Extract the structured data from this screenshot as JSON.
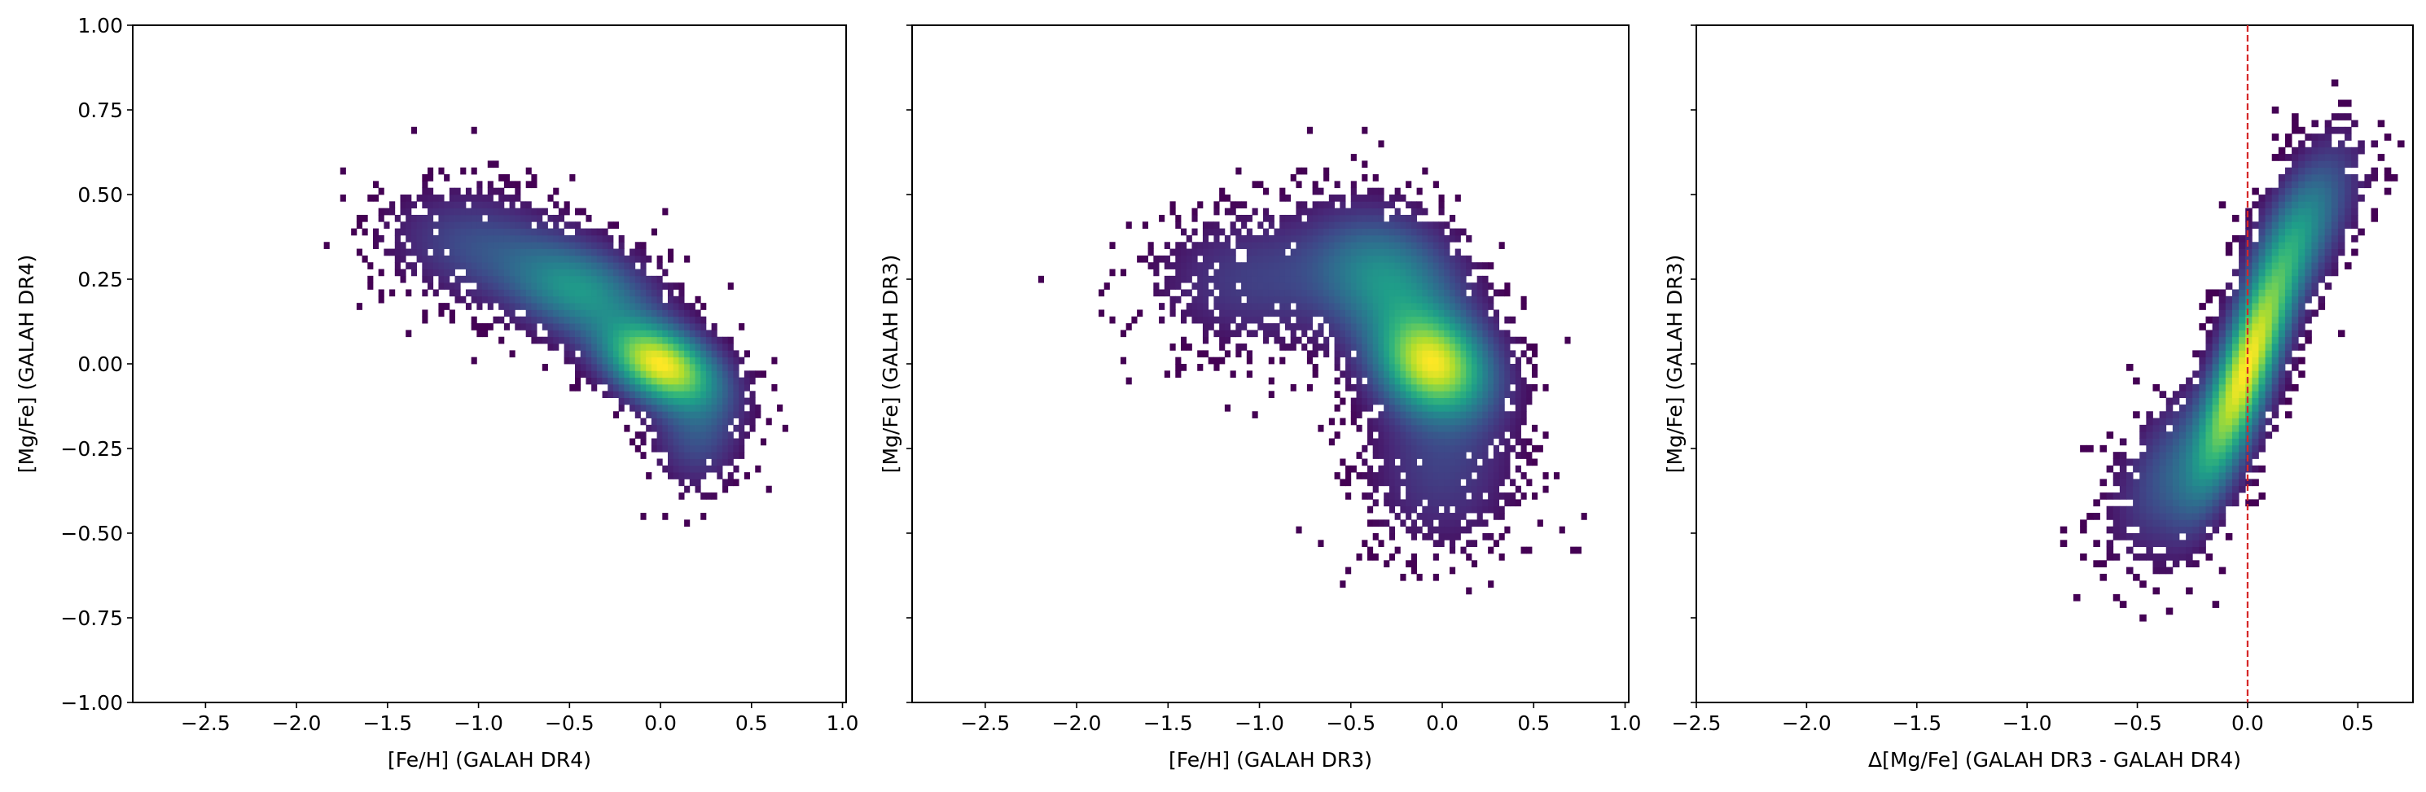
{
  "chart_data": [
    {
      "type": "heatmap",
      "title": "",
      "xlabel": "[Fe/H] (GALAH DR4)",
      "ylabel": "[Mg/Fe] (GALAH DR4)",
      "xlim": [
        -2.9,
        1.02
      ],
      "ylim": [
        -1.0,
        1.0
      ],
      "xticks": [
        -2.5,
        -2.0,
        -1.5,
        -1.0,
        -0.5,
        0.0,
        0.5,
        1.0
      ],
      "xtick_labels": [
        "−2.5",
        "−2.0",
        "−1.5",
        "−1.0",
        "−0.5",
        "0.0",
        "0.5",
        "1.0"
      ],
      "yticks": [
        -1.0,
        -0.75,
        -0.5,
        -0.25,
        0.0,
        0.25,
        0.5,
        0.75,
        1.0
      ],
      "ytick_labels": [
        "−1.00",
        "−0.75",
        "−0.50",
        "−0.25",
        "0.00",
        "0.25",
        "0.50",
        "0.75",
        "1.00"
      ],
      "colormap": "viridis",
      "density_components": [
        {
          "x": 0.0,
          "y": 0.0,
          "sx": 0.2,
          "sy": 0.08,
          "rho": -0.4,
          "w": 1.0
        },
        {
          "x": -0.45,
          "y": 0.22,
          "sx": 0.25,
          "sy": 0.09,
          "rho": -0.3,
          "w": 0.45
        },
        {
          "x": -1.0,
          "y": 0.35,
          "sx": 0.3,
          "sy": 0.1,
          "rho": -0.2,
          "w": 0.18
        },
        {
          "x": 0.2,
          "y": -0.2,
          "sx": 0.15,
          "sy": 0.1,
          "rho": 0.0,
          "w": 0.2
        }
      ]
    },
    {
      "type": "heatmap",
      "title": "",
      "xlabel": "[Fe/H] (GALAH DR3)",
      "ylabel": "[Mg/Fe] (GALAH DR3)",
      "xlim": [
        -2.9,
        1.02
      ],
      "ylim": [
        -1.0,
        1.0
      ],
      "xticks": [
        -2.5,
        -2.0,
        -1.5,
        -1.0,
        -0.5,
        0.0,
        0.5,
        1.0
      ],
      "xtick_labels": [
        "−2.5",
        "−2.0",
        "−1.5",
        "−1.0",
        "−0.5",
        "0.0",
        "0.5",
        "1.0"
      ],
      "yticks": [
        -1.0,
        -0.75,
        -0.5,
        -0.25,
        0.0,
        0.25,
        0.5,
        0.75,
        1.0
      ],
      "ytick_labels": [],
      "colormap": "viridis",
      "density_components": [
        {
          "x": -0.05,
          "y": 0.0,
          "sx": 0.2,
          "sy": 0.1,
          "rho": -0.2,
          "w": 1.0
        },
        {
          "x": -0.3,
          "y": 0.25,
          "sx": 0.25,
          "sy": 0.12,
          "rho": -0.2,
          "w": 0.45
        },
        {
          "x": -1.0,
          "y": 0.25,
          "sx": 0.35,
          "sy": 0.12,
          "rho": 0.0,
          "w": 0.15
        },
        {
          "x": 0.0,
          "y": -0.3,
          "sx": 0.25,
          "sy": 0.15,
          "rho": 0.0,
          "w": 0.15
        }
      ]
    },
    {
      "type": "heatmap",
      "title": "",
      "xlabel": "Δ[Mg/Fe] (GALAH DR3 - GALAH DR4)",
      "ylabel": "[Mg/Fe] (GALAH DR3)",
      "xlim": [
        -2.5,
        0.75
      ],
      "ylim": [
        -1.0,
        1.0
      ],
      "xticks": [
        -2.5,
        -2.0,
        -1.5,
        -1.0,
        -0.5,
        0.0,
        0.5
      ],
      "xtick_labels": [
        "−2.5",
        "−2.0",
        "−1.5",
        "−1.0",
        "−0.5",
        "0.0",
        "0.5"
      ],
      "yticks": [
        -1.0,
        -0.75,
        -0.5,
        -0.25,
        0.0,
        0.25,
        0.5,
        0.75,
        1.0
      ],
      "ytick_labels": [],
      "colormap": "viridis",
      "reference_line": {
        "x": 0.0,
        "color": "#d62728",
        "style": "dashed"
      },
      "density_components": [
        {
          "x": 0.0,
          "y": 0.0,
          "sx": 0.14,
          "sy": 0.22,
          "rho": 0.8,
          "w": 1.0
        },
        {
          "x": 0.25,
          "y": 0.4,
          "sx": 0.15,
          "sy": 0.15,
          "rho": 0.6,
          "w": 0.35
        },
        {
          "x": -0.3,
          "y": -0.3,
          "sx": 0.18,
          "sy": 0.15,
          "rho": 0.5,
          "w": 0.25
        }
      ]
    }
  ]
}
